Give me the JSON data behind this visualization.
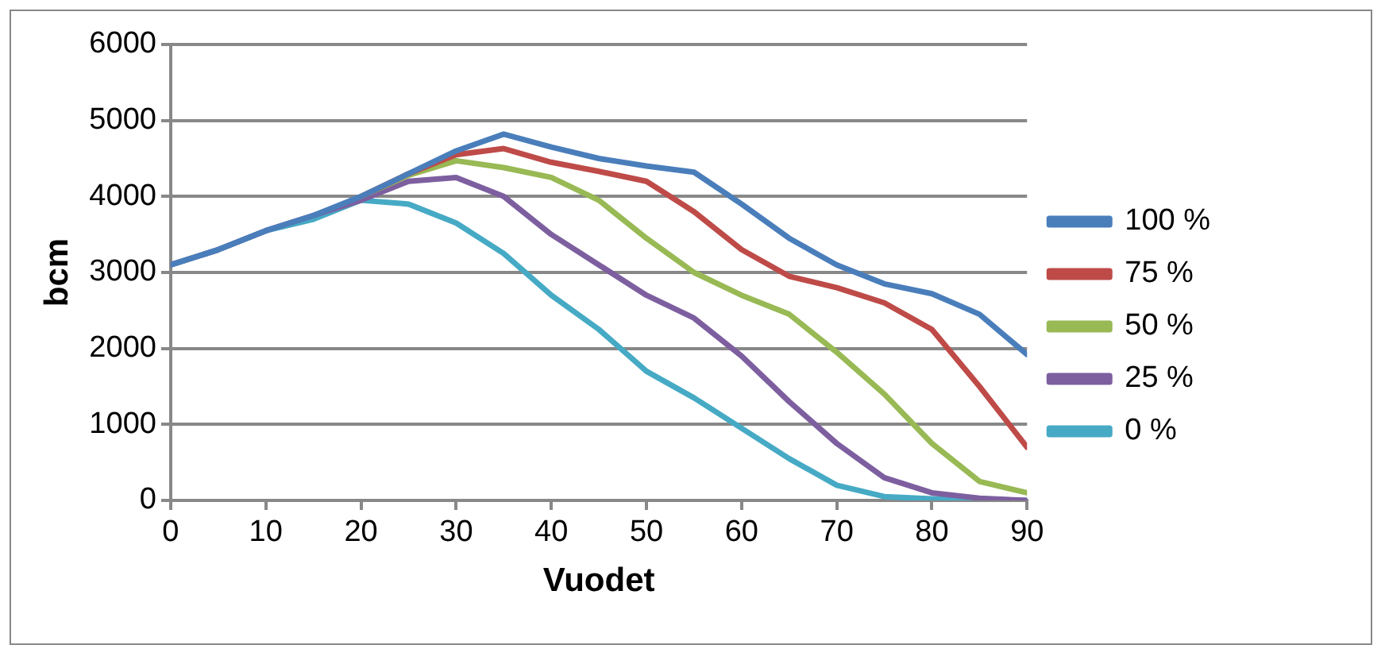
{
  "chart_data": {
    "type": "line",
    "xlabel": "Vuodet",
    "ylabel": "bcm",
    "x": [
      0,
      5,
      10,
      15,
      20,
      25,
      30,
      35,
      40,
      45,
      50,
      55,
      60,
      65,
      70,
      75,
      80,
      85,
      90
    ],
    "xlim": [
      0,
      90
    ],
    "xticks": [
      0,
      10,
      20,
      30,
      40,
      50,
      60,
      70,
      80,
      90
    ],
    "ylim": [
      0,
      6000
    ],
    "yticks": [
      0,
      1000,
      2000,
      3000,
      4000,
      5000,
      6000
    ],
    "grid": "y",
    "legend": "right",
    "marker": "none",
    "line_style": "solid",
    "series": [
      {
        "name": "100 %",
        "color": "#4a7ebb",
        "values": [
          3100,
          3300,
          3550,
          3750,
          4000,
          4300,
          4600,
          4820,
          4650,
          4500,
          4400,
          4320,
          3900,
          3450,
          3100,
          2850,
          2720,
          2450,
          1920
        ]
      },
      {
        "name": "75 %",
        "color": "#be4b48",
        "values": [
          null,
          null,
          null,
          null,
          4000,
          4300,
          4550,
          4630,
          4450,
          4330,
          4200,
          3800,
          3300,
          2950,
          2800,
          2600,
          2250,
          1500,
          700
        ]
      },
      {
        "name": "50 %",
        "color": "#98b954",
        "values": [
          null,
          null,
          null,
          null,
          4000,
          4280,
          4470,
          4380,
          4250,
          3950,
          3450,
          3000,
          2700,
          2450,
          1950,
          1400,
          750,
          250,
          100
        ]
      },
      {
        "name": "25 %",
        "color": "#7d5fa0",
        "values": [
          3100,
          3300,
          3550,
          3750,
          3950,
          4200,
          4250,
          4000,
          3500,
          3100,
          2700,
          2400,
          1900,
          1300,
          750,
          300,
          100,
          30,
          0
        ]
      },
      {
        "name": "0 %",
        "color": "#46aac5",
        "values": [
          3100,
          3300,
          3550,
          3700,
          3950,
          3900,
          3650,
          3250,
          2700,
          2250,
          1700,
          1350,
          950,
          550,
          200,
          50,
          20,
          0,
          0
        ]
      }
    ]
  }
}
